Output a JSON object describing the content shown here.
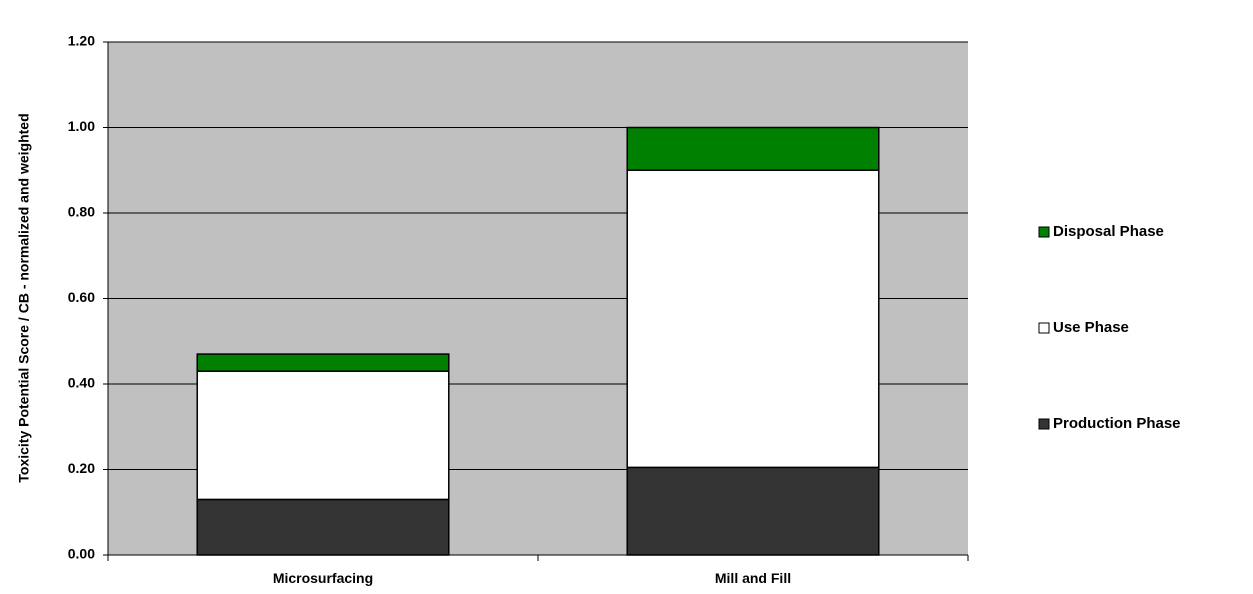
{
  "chart_data": {
    "type": "bar",
    "stacked": true,
    "ylabel": "Toxicity Potential Score / CB - normalized and weighted",
    "xlabel": "",
    "ylim": [
      0,
      1.2
    ],
    "yticks": [
      "0.00",
      "0.20",
      "0.40",
      "0.60",
      "0.80",
      "1.00",
      "1.20"
    ],
    "categories": [
      "Microsurfacing",
      "Mill and Fill"
    ],
    "grid": true,
    "legend_position": "right",
    "plot_background": "#c0c0c0",
    "series": [
      {
        "name": "Production Phase",
        "color": "#333333",
        "values": [
          0.13,
          0.205
        ]
      },
      {
        "name": "Use Phase",
        "color": "#ffffff",
        "values": [
          0.3,
          0.695
        ]
      },
      {
        "name": "Disposal Phase",
        "color": "#008000",
        "values": [
          0.04,
          0.1
        ]
      }
    ],
    "legend_order": [
      "Disposal Phase",
      "Use Phase",
      "Production Phase"
    ]
  }
}
